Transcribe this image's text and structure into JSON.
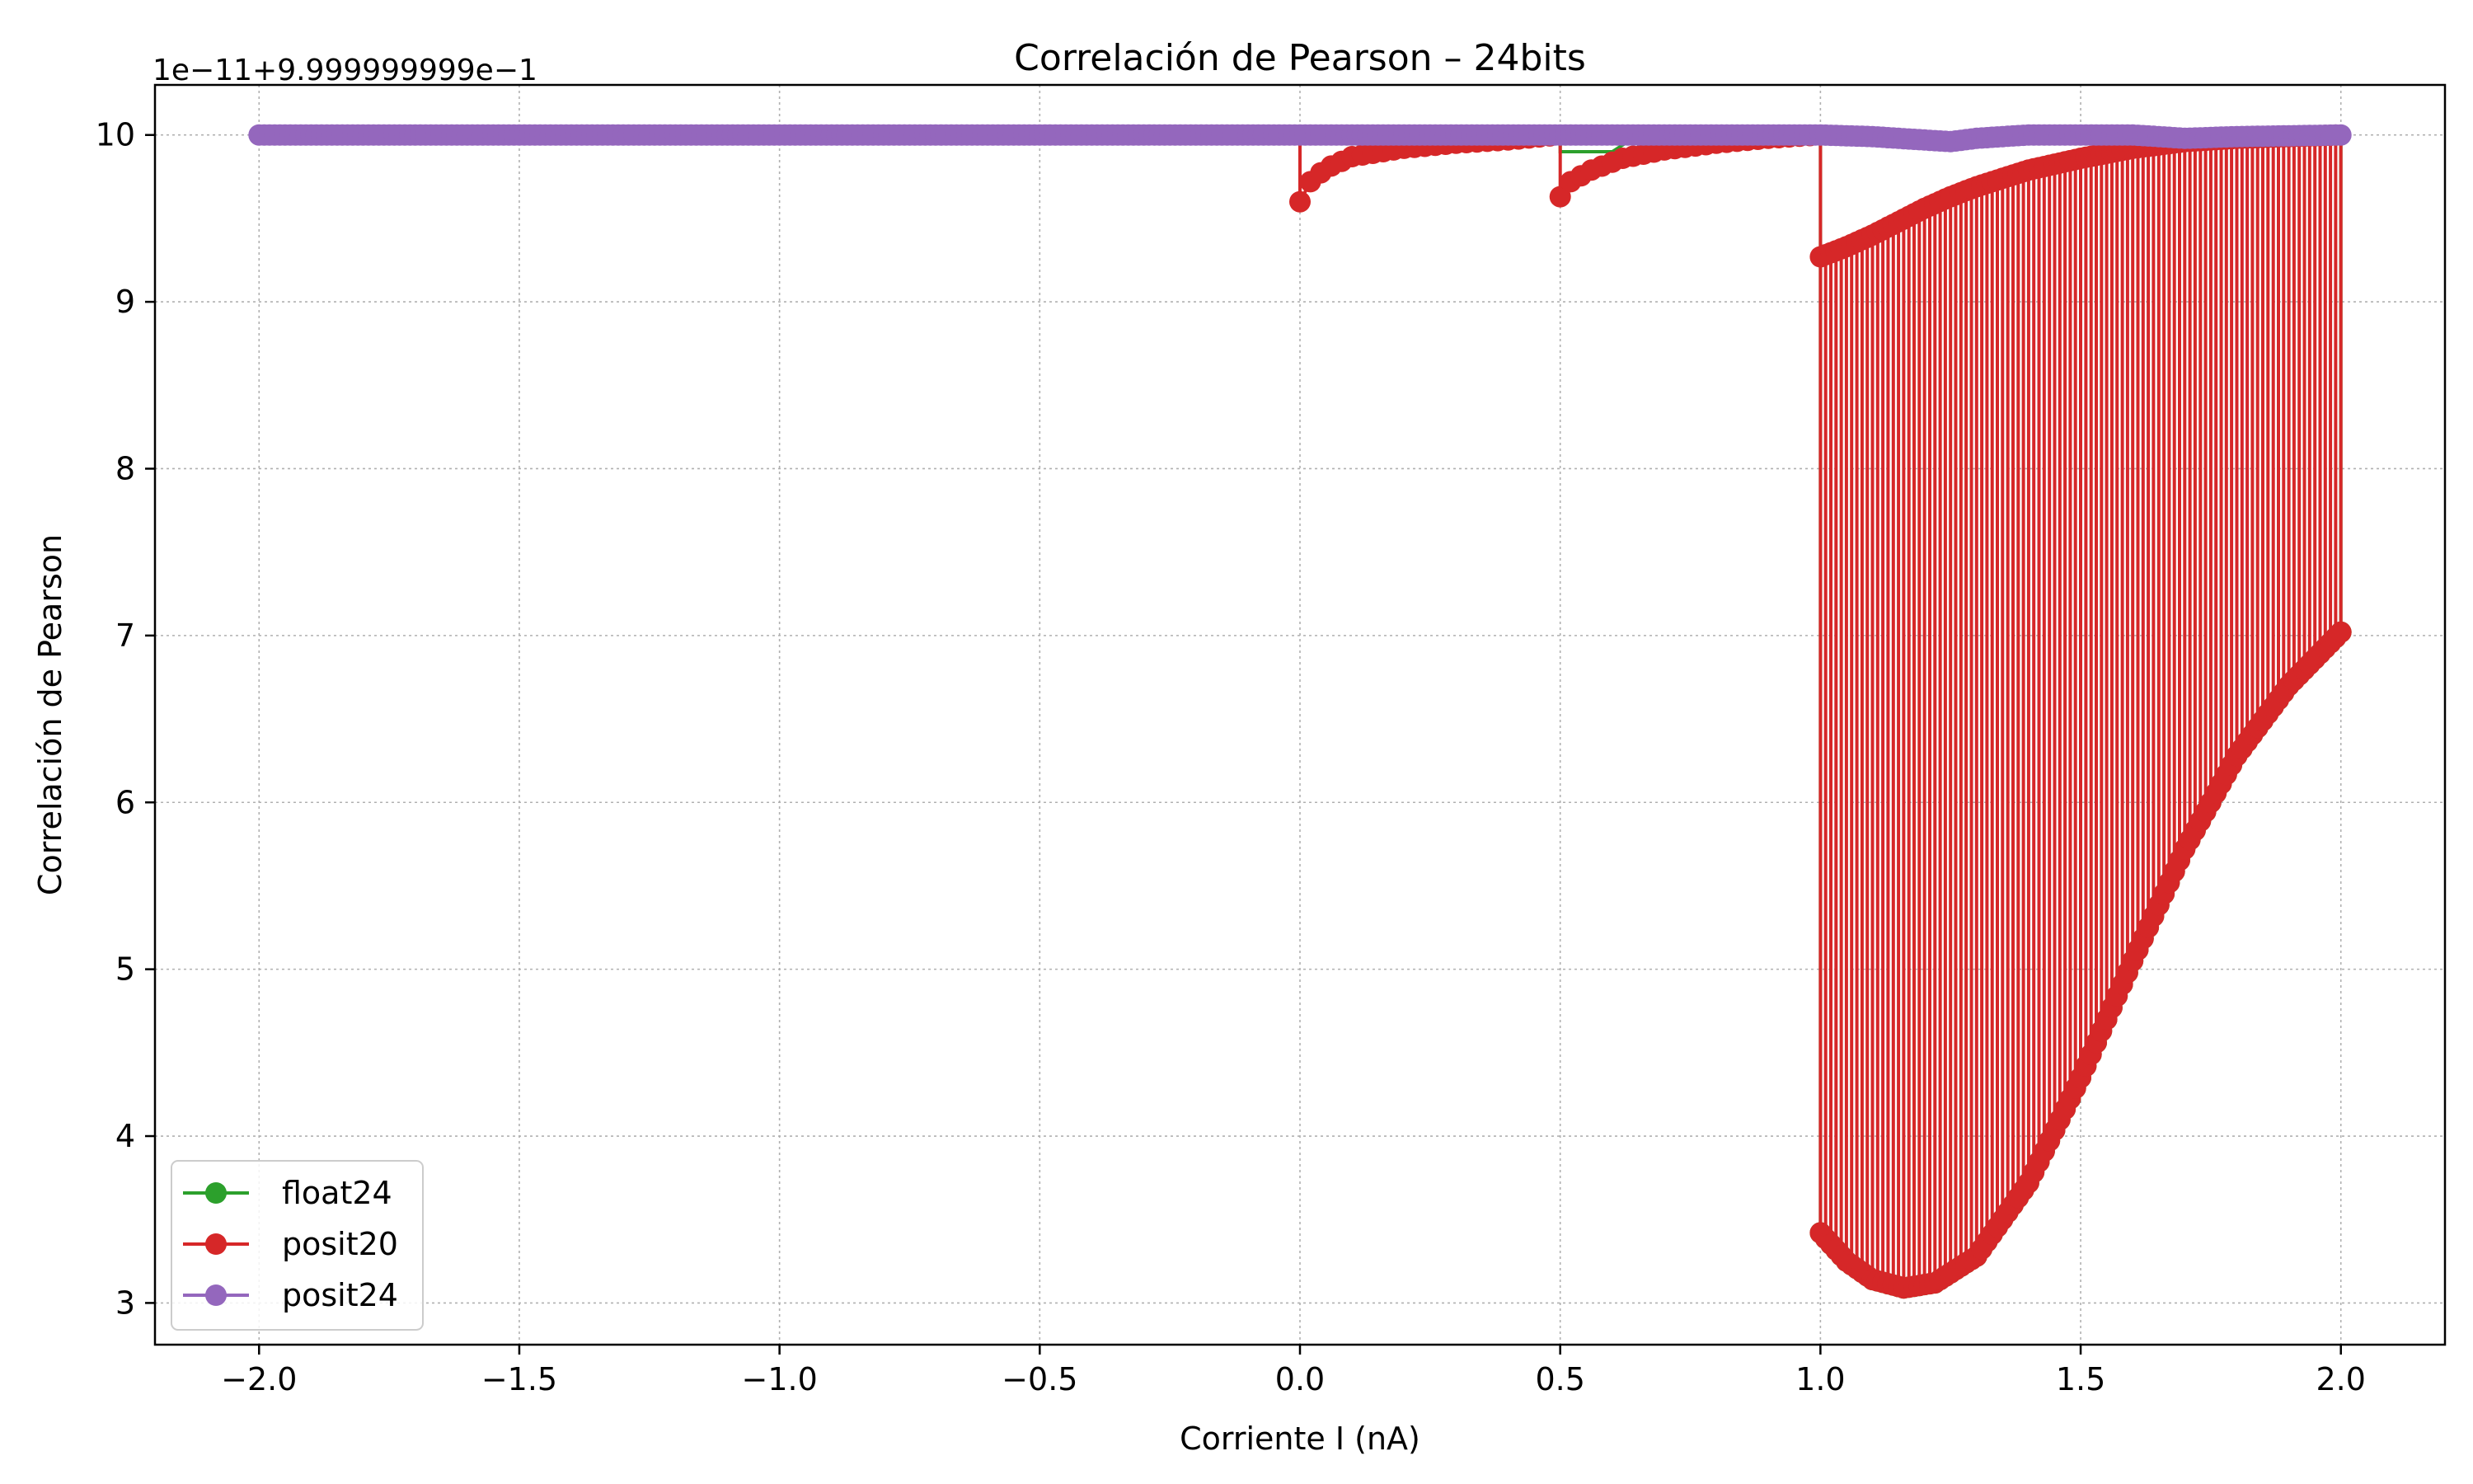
{
  "chart_data": {
    "type": "line",
    "title": "Correlación de Pearson – 24bits",
    "xlabel": "Corriente I (nA)",
    "ylabel": "Correlación de Pearson",
    "offset_label": "1e−11+9.999999999e−1",
    "xlim": [
      -2.2,
      2.2
    ],
    "ylim": [
      2.75,
      10.3
    ],
    "xticks": [
      -2.0,
      -1.5,
      -1.0,
      -0.5,
      0.0,
      0.5,
      1.0,
      1.5,
      2.0
    ],
    "xtick_labels": [
      "−2.0",
      "−1.5",
      "−1.0",
      "−0.5",
      "0.0",
      "0.5",
      "1.0",
      "1.5",
      "2.0"
    ],
    "yticks": [
      3,
      4,
      5,
      6,
      7,
      8,
      9,
      10
    ],
    "ytick_labels": [
      "3",
      "4",
      "5",
      "6",
      "7",
      "8",
      "9",
      "10"
    ],
    "grid": true,
    "legend_position": "lower-left",
    "series": [
      {
        "name": "float24",
        "color": "#2ca02c",
        "description_points": [
          [
            -2.0,
            10.0
          ],
          [
            0.0,
            10.0
          ],
          [
            0.5,
            10.0
          ],
          [
            0.5,
            9.9
          ],
          [
            0.6,
            9.9
          ],
          [
            0.65,
            10.0
          ],
          [
            1.0,
            10.0
          ],
          [
            1.0,
            3.42
          ],
          [
            1.05,
            3.25
          ],
          [
            1.1,
            3.14
          ],
          [
            1.16,
            3.09
          ],
          [
            1.22,
            3.12
          ],
          [
            1.3,
            3.28
          ],
          [
            1.4,
            3.72
          ],
          [
            1.5,
            4.35
          ],
          [
            1.6,
            5.05
          ],
          [
            1.7,
            5.72
          ],
          [
            1.8,
            6.28
          ],
          [
            1.9,
            6.7
          ],
          [
            2.0,
            7.02
          ],
          [
            2.0,
            10.0
          ]
        ]
      },
      {
        "name": "posit20",
        "color": "#d62728",
        "segments": [
          [
            [
              0.0,
              9.6
            ],
            [
              0.02,
              9.72
            ],
            [
              0.05,
              9.8
            ],
            [
              0.1,
              9.87
            ],
            [
              0.2,
              9.92
            ],
            [
              0.3,
              9.95
            ],
            [
              0.4,
              9.97
            ],
            [
              0.5,
              10.0
            ]
          ],
          [
            [
              0.5,
              9.63
            ],
            [
              0.52,
              9.72
            ],
            [
              0.56,
              9.79
            ],
            [
              0.62,
              9.86
            ],
            [
              0.7,
              9.91
            ],
            [
              0.8,
              9.95
            ],
            [
              0.9,
              9.98
            ],
            [
              1.0,
              10.0
            ]
          ]
        ],
        "upper_envelope": [
          [
            1.0,
            9.27
          ],
          [
            1.05,
            9.33
          ],
          [
            1.1,
            9.4
          ],
          [
            1.15,
            9.48
          ],
          [
            1.2,
            9.56
          ],
          [
            1.25,
            9.63
          ],
          [
            1.3,
            9.69
          ],
          [
            1.35,
            9.74
          ],
          [
            1.4,
            9.79
          ],
          [
            1.5,
            9.86
          ],
          [
            1.6,
            9.92
          ],
          [
            1.7,
            9.96
          ],
          [
            1.8,
            9.98
          ],
          [
            1.9,
            9.99
          ],
          [
            2.0,
            10.0
          ]
        ],
        "lower_envelope": [
          [
            1.0,
            3.42
          ],
          [
            1.05,
            3.25
          ],
          [
            1.1,
            3.14
          ],
          [
            1.16,
            3.09
          ],
          [
            1.22,
            3.12
          ],
          [
            1.3,
            3.28
          ],
          [
            1.4,
            3.72
          ],
          [
            1.5,
            4.35
          ],
          [
            1.6,
            5.05
          ],
          [
            1.7,
            5.72
          ],
          [
            1.8,
            6.28
          ],
          [
            1.9,
            6.7
          ],
          [
            2.0,
            7.02
          ]
        ]
      },
      {
        "name": "posit24",
        "color": "#9467bd",
        "points": [
          [
            -2.0,
            10.0
          ],
          [
            1.0,
            10.0
          ],
          [
            1.1,
            9.99
          ],
          [
            1.2,
            9.97
          ],
          [
            1.25,
            9.96
          ],
          [
            1.3,
            9.98
          ],
          [
            1.4,
            10.0
          ],
          [
            1.6,
            10.0
          ],
          [
            1.7,
            9.98
          ],
          [
            1.8,
            9.99
          ],
          [
            2.0,
            10.0
          ]
        ]
      }
    ]
  }
}
